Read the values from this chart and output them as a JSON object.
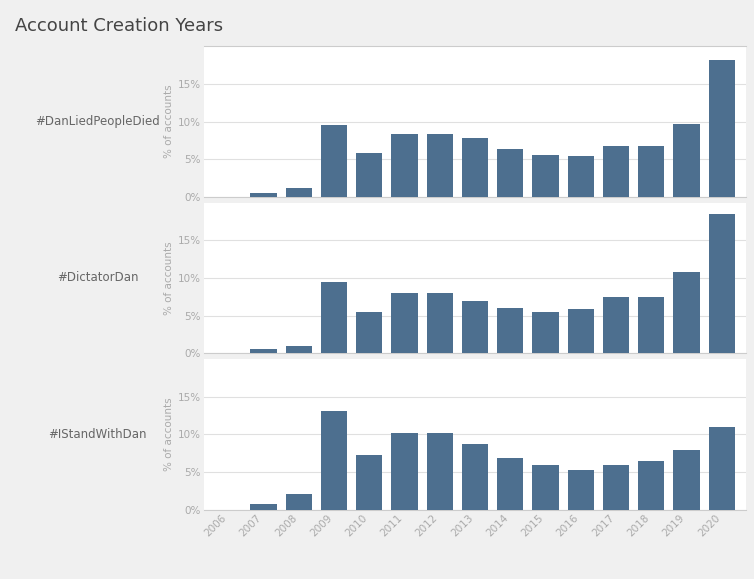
{
  "title": "Account Creation Years",
  "hashtags": [
    "#DanLiedPeopleDied",
    "#DictatorDan",
    "#IStandWithDan"
  ],
  "years": [
    2006,
    2007,
    2008,
    2009,
    2010,
    2011,
    2012,
    2013,
    2014,
    2015,
    2016,
    2017,
    2018,
    2019,
    2020
  ],
  "values": {
    "#DanLiedPeopleDied": [
      0.0,
      0.5,
      1.2,
      9.5,
      5.8,
      8.3,
      8.3,
      7.8,
      6.3,
      5.5,
      5.4,
      6.8,
      6.8,
      9.7,
      18.2
    ],
    "#DictatorDan": [
      0.0,
      0.5,
      1.0,
      9.4,
      5.5,
      8.0,
      8.0,
      6.9,
      6.0,
      5.5,
      5.9,
      7.5,
      7.5,
      10.8,
      18.5
    ],
    "#IStandWithDan": [
      0.0,
      0.7,
      2.0,
      13.1,
      7.3,
      10.2,
      10.1,
      8.7,
      6.9,
      5.9,
      5.2,
      5.9,
      6.4,
      7.9,
      11.0
    ]
  },
  "bar_color": "#4d6f8f",
  "ylabel": "% of accounts",
  "background_color": "#f0f0f0",
  "plot_background": "#ffffff",
  "title_fontsize": 13,
  "label_fontsize": 7.5,
  "tick_fontsize": 7.5,
  "hashtag_fontsize": 8.5,
  "ylim": [
    0,
    20
  ],
  "yticks": [
    0,
    5,
    10,
    15
  ],
  "title_color": "#444444",
  "tick_color": "#aaaaaa",
  "hashtag_color": "#666666",
  "grid_color": "#e0e0e0",
  "separator_color": "#cccccc"
}
